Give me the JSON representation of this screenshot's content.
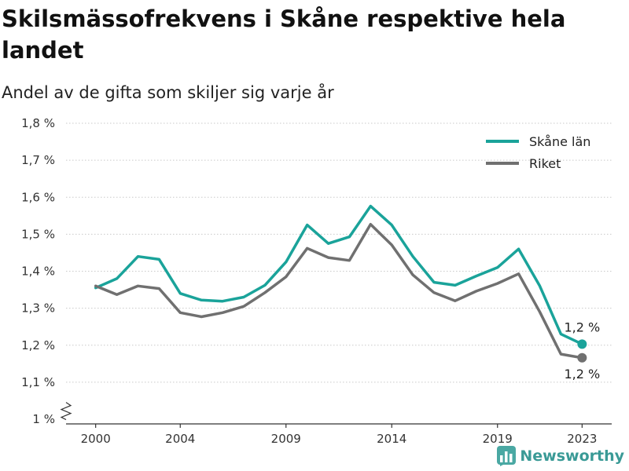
{
  "title": "Skilsmässofrekvens i Skåne respektive hela landet",
  "subtitle": "Andel av de gifta som skiljer sig varje år",
  "brand": {
    "name": "Newsworthy",
    "icon": "bar-chart-logo-icon",
    "color": "#4aa8a3"
  },
  "chart_data": {
    "type": "line",
    "x": [
      2000,
      2001,
      2002,
      2003,
      2004,
      2005,
      2006,
      2007,
      2008,
      2009,
      2010,
      2011,
      2012,
      2013,
      2014,
      2015,
      2016,
      2017,
      2018,
      2019,
      2020,
      2021,
      2022,
      2023
    ],
    "xticks": [
      2000,
      2004,
      2009,
      2014,
      2019,
      2023
    ],
    "xtick_labels": [
      "2000",
      "2004",
      "2009",
      "2014",
      "2019",
      "2023"
    ],
    "yticks": [
      1.0,
      1.1,
      1.2,
      1.3,
      1.4,
      1.5,
      1.6,
      1.7,
      1.8
    ],
    "ytick_labels": [
      "1 %",
      "1,1 %",
      "1,2 %",
      "1,3 %",
      "1,4 %",
      "1,5 %",
      "1,6 %",
      "1,7 %",
      "1,8 %"
    ],
    "ylim": [
      1.0,
      1.8
    ],
    "xlim": [
      1998.6,
      2024.4
    ],
    "axis_break": true,
    "grid": "horizontal-dotted",
    "legend_position": "top-right",
    "series": [
      {
        "name": "Skåne län",
        "color": "#1aa39a",
        "values": [
          1.355,
          1.38,
          1.44,
          1.432,
          1.34,
          1.322,
          1.319,
          1.33,
          1.362,
          1.425,
          1.525,
          1.475,
          1.493,
          1.576,
          1.525,
          1.44,
          1.37,
          1.362,
          1.387,
          1.41,
          1.46,
          1.36,
          1.23,
          1.203
        ],
        "end_label": "1,2 %"
      },
      {
        "name": "Riket",
        "color": "#707070",
        "values": [
          1.36,
          1.337,
          1.36,
          1.353,
          1.288,
          1.277,
          1.288,
          1.305,
          1.342,
          1.385,
          1.462,
          1.437,
          1.429,
          1.527,
          1.471,
          1.39,
          1.342,
          1.32,
          1.346,
          1.367,
          1.393,
          1.29,
          1.176,
          1.166
        ],
        "end_label": "1,2 %"
      }
    ]
  }
}
